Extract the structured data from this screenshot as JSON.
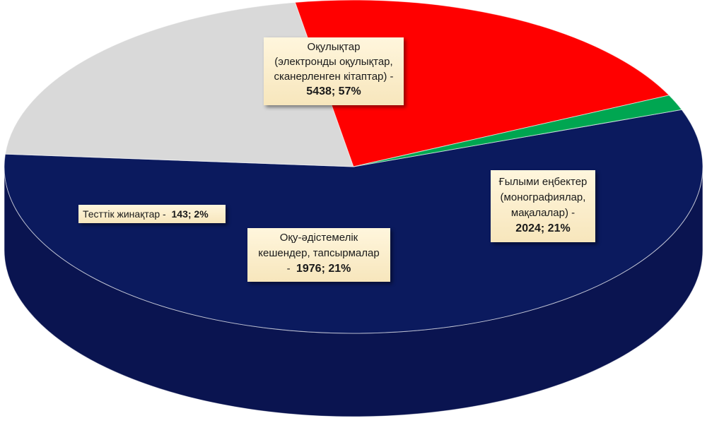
{
  "chart_data": {
    "type": "pie",
    "style": "3d",
    "legend": "none",
    "slices": [
      {
        "label_lines": [
          "Оқулықтар",
          "(электронды оқулықтар,",
          "сканерленген кітаптар)  -"
        ],
        "value": 5438,
        "percent": "57%",
        "value_text": "5438; 57%",
        "color": "#0b1a5e",
        "side_color": "#07113d"
      },
      {
        "label_lines": [
          "Ғылыми еңбектер",
          "(монографиялар,",
          "мақалалар) -"
        ],
        "value": 2024,
        "percent": "21%",
        "value_text": "2024; 21%",
        "color": "#d9d9d9",
        "side_color": "#5f5f5f"
      },
      {
        "label_lines": [
          "Оқу-әдістемелік",
          "кешендер, тапсырмалар",
          "-"
        ],
        "value": 1976,
        "percent": "21%",
        "value_text": "1976; 21%",
        "color": "#ff0000",
        "side_color": "#a00000"
      },
      {
        "label_lines": [
          "Тесттік жинақтар  -"
        ],
        "value": 143,
        "percent": "2%",
        "value_text": "143; 2%",
        "color": "#00a651",
        "side_color": "#00843f"
      }
    ]
  }
}
